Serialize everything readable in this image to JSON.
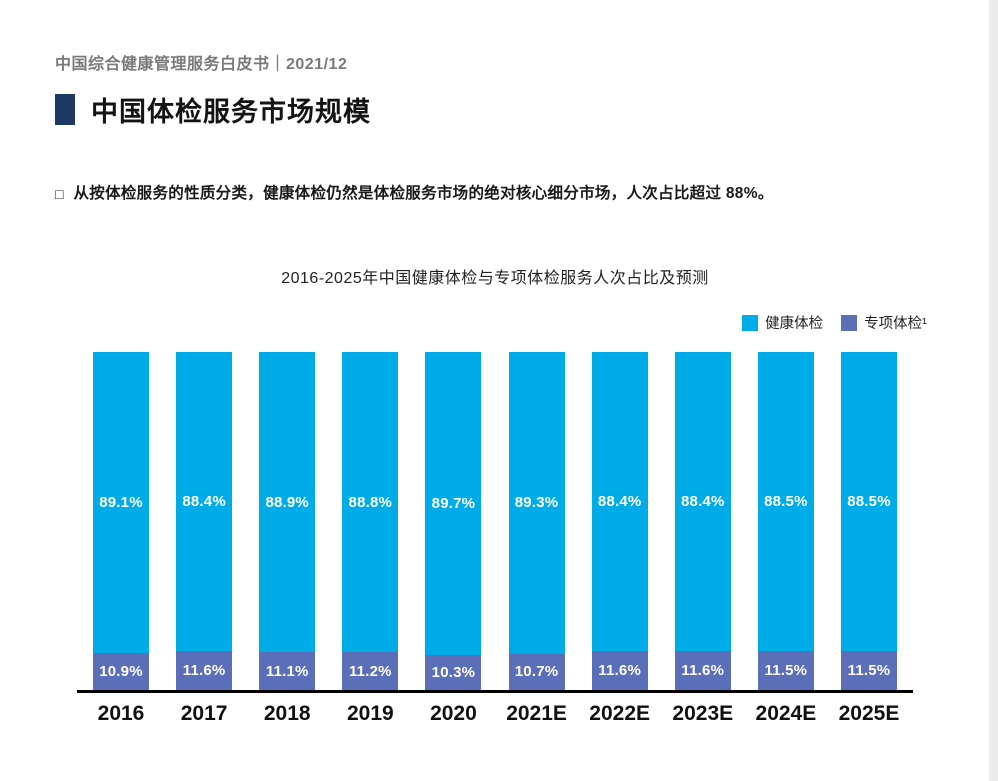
{
  "header": {
    "text": "中国综合健康管理服务白皮书｜2021/12"
  },
  "title": {
    "text": "中国体检服务市场规模"
  },
  "bullet": {
    "marker": "□",
    "text": "从按体检服务的性质分类，健康体检仍然是体检服务市场的绝对核心细分市场，人次占比超过 88%。"
  },
  "chart_data": {
    "type": "bar",
    "stacked": true,
    "title": "2016-2025年中国健康体检与专项体检服务人次占比及预测",
    "categories": [
      "2016",
      "2017",
      "2018",
      "2019",
      "2020",
      "2021E",
      "2022E",
      "2023E",
      "2024E",
      "2025E"
    ],
    "series": [
      {
        "name": "健康体检",
        "color": "#00ACE8",
        "values": [
          89.1,
          88.4,
          88.9,
          88.8,
          89.7,
          89.3,
          88.4,
          88.4,
          88.5,
          88.5
        ]
      },
      {
        "name": "专项体检¹",
        "color": "#5B6EB8",
        "values": [
          10.9,
          11.6,
          11.1,
          11.2,
          10.3,
          10.7,
          11.6,
          11.6,
          11.5,
          11.5
        ]
      }
    ],
    "value_suffix": "%",
    "ylim": [
      0,
      100
    ],
    "grid": false,
    "legend_position": "top-right"
  },
  "colors": {
    "accent_navy": "#1F3864",
    "health_exam_cyan": "#00ACE8",
    "special_exam_blue": "#5B6EB8",
    "axis": "#000000",
    "header_gray": "#7A7A7A"
  }
}
